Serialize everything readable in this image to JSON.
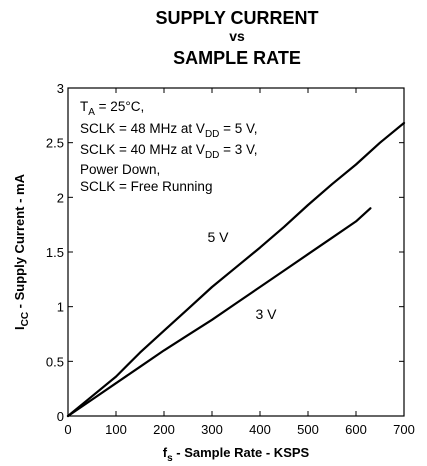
{
  "chart_data": {
    "type": "line",
    "title_line1": "SUPPLY CURRENT",
    "title_line2": "vs",
    "title_line3": "SAMPLE RATE",
    "xlabel": {
      "main": "f",
      "sub": "s",
      "rest": " - Sample Rate - KSPS"
    },
    "ylabel": {
      "main": "I",
      "sub": "CC",
      "rest": " - Supply Current - mA"
    },
    "xlim": [
      0,
      700
    ],
    "ylim": [
      0,
      3
    ],
    "x_ticks": [
      0,
      100,
      200,
      300,
      400,
      500,
      600,
      700
    ],
    "y_ticks": [
      0,
      0.5,
      1,
      1.5,
      2,
      2.5,
      3
    ],
    "y_tick_labels": [
      "0",
      "0.5",
      "1",
      "1.5",
      "2",
      "2.5",
      "3"
    ],
    "grid": false,
    "annotation": {
      "line1": {
        "a": "T",
        "sub": "A",
        "b": " = 25°C,"
      },
      "line2": {
        "a": "SCLK = 48 MHz at V",
        "sub": "DD",
        "b": " = 5 V,"
      },
      "line3": {
        "a": "SCLK = 40 MHz at V",
        "sub": "DD",
        "b": " = 3 V,"
      },
      "line4": "Power Down,",
      "line5": "SCLK = Free Running"
    },
    "series": [
      {
        "name": "5 V",
        "x": [
          0,
          50,
          100,
          150,
          200,
          250,
          300,
          350,
          400,
          450,
          500,
          550,
          600,
          650,
          700
        ],
        "values": [
          0.0,
          0.18,
          0.36,
          0.58,
          0.78,
          0.98,
          1.18,
          1.36,
          1.54,
          1.73,
          1.93,
          2.12,
          2.3,
          2.5,
          2.68
        ]
      },
      {
        "name": "3 V",
        "x": [
          0,
          50,
          100,
          150,
          200,
          250,
          300,
          350,
          400,
          450,
          500,
          550,
          600,
          630
        ],
        "values": [
          0.0,
          0.15,
          0.3,
          0.45,
          0.6,
          0.74,
          0.88,
          1.03,
          1.18,
          1.33,
          1.48,
          1.63,
          1.78,
          1.9
        ]
      }
    ],
    "colors": {
      "line": "#000000",
      "axis": "#000000",
      "background": "#ffffff"
    }
  }
}
